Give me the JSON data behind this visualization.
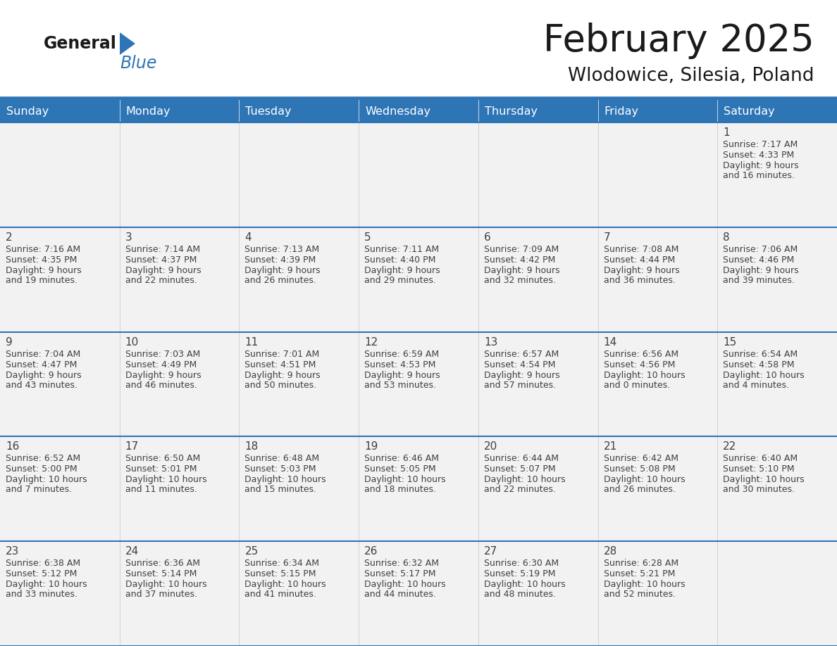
{
  "title": "February 2025",
  "subtitle": "Wlodowice, Silesia, Poland",
  "header_bg": "#2E75B6",
  "header_text": "#FFFFFF",
  "cell_bg": "#F2F2F2",
  "cell_border": "#2E75B6",
  "day_names": [
    "Sunday",
    "Monday",
    "Tuesday",
    "Wednesday",
    "Thursday",
    "Friday",
    "Saturday"
  ],
  "title_color": "#1a1a1a",
  "subtitle_color": "#1a1a1a",
  "text_color": "#404040",
  "days_data": [
    {
      "day": 1,
      "col": 6,
      "row": 0,
      "sunrise": "7:17 AM",
      "sunset": "4:33 PM",
      "daylight_h": "9 hours",
      "daylight_m": "and 16 minutes."
    },
    {
      "day": 2,
      "col": 0,
      "row": 1,
      "sunrise": "7:16 AM",
      "sunset": "4:35 PM",
      "daylight_h": "9 hours",
      "daylight_m": "and 19 minutes."
    },
    {
      "day": 3,
      "col": 1,
      "row": 1,
      "sunrise": "7:14 AM",
      "sunset": "4:37 PM",
      "daylight_h": "9 hours",
      "daylight_m": "and 22 minutes."
    },
    {
      "day": 4,
      "col": 2,
      "row": 1,
      "sunrise": "7:13 AM",
      "sunset": "4:39 PM",
      "daylight_h": "9 hours",
      "daylight_m": "and 26 minutes."
    },
    {
      "day": 5,
      "col": 3,
      "row": 1,
      "sunrise": "7:11 AM",
      "sunset": "4:40 PM",
      "daylight_h": "9 hours",
      "daylight_m": "and 29 minutes."
    },
    {
      "day": 6,
      "col": 4,
      "row": 1,
      "sunrise": "7:09 AM",
      "sunset": "4:42 PM",
      "daylight_h": "9 hours",
      "daylight_m": "and 32 minutes."
    },
    {
      "day": 7,
      "col": 5,
      "row": 1,
      "sunrise": "7:08 AM",
      "sunset": "4:44 PM",
      "daylight_h": "9 hours",
      "daylight_m": "and 36 minutes."
    },
    {
      "day": 8,
      "col": 6,
      "row": 1,
      "sunrise": "7:06 AM",
      "sunset": "4:46 PM",
      "daylight_h": "9 hours",
      "daylight_m": "and 39 minutes."
    },
    {
      "day": 9,
      "col": 0,
      "row": 2,
      "sunrise": "7:04 AM",
      "sunset": "4:47 PM",
      "daylight_h": "9 hours",
      "daylight_m": "and 43 minutes."
    },
    {
      "day": 10,
      "col": 1,
      "row": 2,
      "sunrise": "7:03 AM",
      "sunset": "4:49 PM",
      "daylight_h": "9 hours",
      "daylight_m": "and 46 minutes."
    },
    {
      "day": 11,
      "col": 2,
      "row": 2,
      "sunrise": "7:01 AM",
      "sunset": "4:51 PM",
      "daylight_h": "9 hours",
      "daylight_m": "and 50 minutes."
    },
    {
      "day": 12,
      "col": 3,
      "row": 2,
      "sunrise": "6:59 AM",
      "sunset": "4:53 PM",
      "daylight_h": "9 hours",
      "daylight_m": "and 53 minutes."
    },
    {
      "day": 13,
      "col": 4,
      "row": 2,
      "sunrise": "6:57 AM",
      "sunset": "4:54 PM",
      "daylight_h": "9 hours",
      "daylight_m": "and 57 minutes."
    },
    {
      "day": 14,
      "col": 5,
      "row": 2,
      "sunrise": "6:56 AM",
      "sunset": "4:56 PM",
      "daylight_h": "10 hours",
      "daylight_m": "and 0 minutes."
    },
    {
      "day": 15,
      "col": 6,
      "row": 2,
      "sunrise": "6:54 AM",
      "sunset": "4:58 PM",
      "daylight_h": "10 hours",
      "daylight_m": "and 4 minutes."
    },
    {
      "day": 16,
      "col": 0,
      "row": 3,
      "sunrise": "6:52 AM",
      "sunset": "5:00 PM",
      "daylight_h": "10 hours",
      "daylight_m": "and 7 minutes."
    },
    {
      "day": 17,
      "col": 1,
      "row": 3,
      "sunrise": "6:50 AM",
      "sunset": "5:01 PM",
      "daylight_h": "10 hours",
      "daylight_m": "and 11 minutes."
    },
    {
      "day": 18,
      "col": 2,
      "row": 3,
      "sunrise": "6:48 AM",
      "sunset": "5:03 PM",
      "daylight_h": "10 hours",
      "daylight_m": "and 15 minutes."
    },
    {
      "day": 19,
      "col": 3,
      "row": 3,
      "sunrise": "6:46 AM",
      "sunset": "5:05 PM",
      "daylight_h": "10 hours",
      "daylight_m": "and 18 minutes."
    },
    {
      "day": 20,
      "col": 4,
      "row": 3,
      "sunrise": "6:44 AM",
      "sunset": "5:07 PM",
      "daylight_h": "10 hours",
      "daylight_m": "and 22 minutes."
    },
    {
      "day": 21,
      "col": 5,
      "row": 3,
      "sunrise": "6:42 AM",
      "sunset": "5:08 PM",
      "daylight_h": "10 hours",
      "daylight_m": "and 26 minutes."
    },
    {
      "day": 22,
      "col": 6,
      "row": 3,
      "sunrise": "6:40 AM",
      "sunset": "5:10 PM",
      "daylight_h": "10 hours",
      "daylight_m": "and 30 minutes."
    },
    {
      "day": 23,
      "col": 0,
      "row": 4,
      "sunrise": "6:38 AM",
      "sunset": "5:12 PM",
      "daylight_h": "10 hours",
      "daylight_m": "and 33 minutes."
    },
    {
      "day": 24,
      "col": 1,
      "row": 4,
      "sunrise": "6:36 AM",
      "sunset": "5:14 PM",
      "daylight_h": "10 hours",
      "daylight_m": "and 37 minutes."
    },
    {
      "day": 25,
      "col": 2,
      "row": 4,
      "sunrise": "6:34 AM",
      "sunset": "5:15 PM",
      "daylight_h": "10 hours",
      "daylight_m": "and 41 minutes."
    },
    {
      "day": 26,
      "col": 3,
      "row": 4,
      "sunrise": "6:32 AM",
      "sunset": "5:17 PM",
      "daylight_h": "10 hours",
      "daylight_m": "and 44 minutes."
    },
    {
      "day": 27,
      "col": 4,
      "row": 4,
      "sunrise": "6:30 AM",
      "sunset": "5:19 PM",
      "daylight_h": "10 hours",
      "daylight_m": "and 48 minutes."
    },
    {
      "day": 28,
      "col": 5,
      "row": 4,
      "sunrise": "6:28 AM",
      "sunset": "5:21 PM",
      "daylight_h": "10 hours",
      "daylight_m": "and 52 minutes."
    }
  ],
  "num_rows": 5,
  "num_cols": 7,
  "logo_general_color": "#1a1a1a",
  "logo_blue_color": "#2E75B6",
  "logo_triangle_color": "#2E75B6"
}
